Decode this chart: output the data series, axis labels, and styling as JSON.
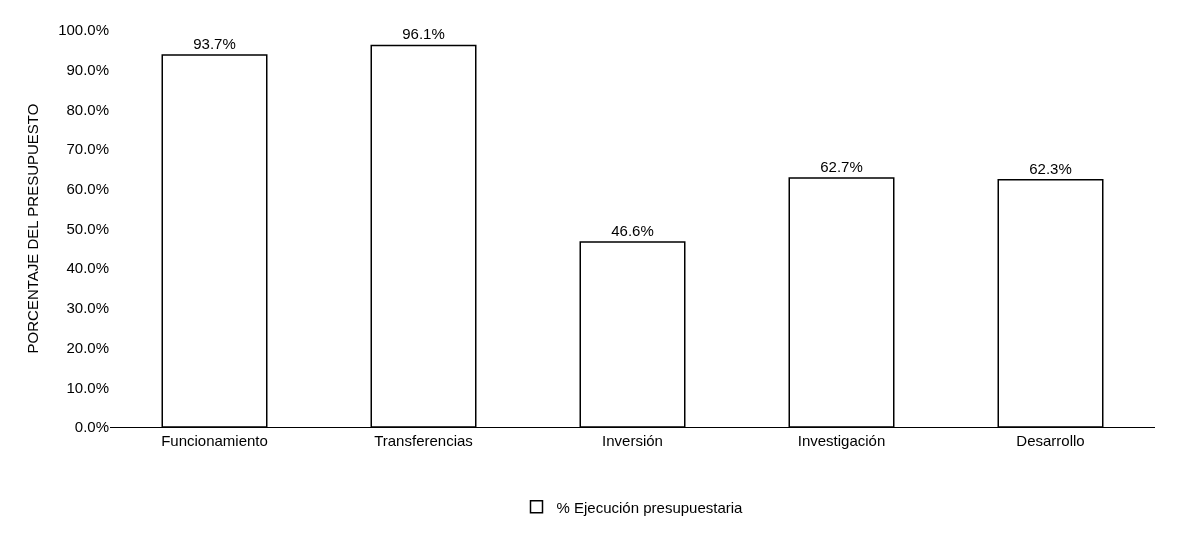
{
  "chart_data": {
    "type": "bar",
    "ylabel": "PORCENTAJE DEL PRESUPUESTO",
    "categories": [
      "Funcionamiento",
      "Transferencias",
      "Inversión",
      "Investigación",
      "Desarrollo"
    ],
    "series": [
      {
        "name": "% Ejecución presupuestaria",
        "color": "#ffffff",
        "values": [
          93.7,
          96.1,
          46.6,
          62.7,
          62.3
        ],
        "value_labels": [
          "93.7%",
          "96.1%",
          "46.6%",
          "62.7%",
          "62.3%"
        ]
      }
    ],
    "ylim": [
      0,
      100
    ],
    "yticks": [
      {
        "value": 0,
        "label": "0.0%"
      },
      {
        "value": 10,
        "label": "10.0%"
      },
      {
        "value": 20,
        "label": "20.0%"
      },
      {
        "value": 30,
        "label": "30.0%"
      },
      {
        "value": 40,
        "label": "40.0%"
      },
      {
        "value": 50,
        "label": "50.0%"
      },
      {
        "value": 60,
        "label": "60.0%"
      },
      {
        "value": 70,
        "label": "70.0%"
      },
      {
        "value": 80,
        "label": "80.0%"
      },
      {
        "value": 90,
        "label": "90.0%"
      },
      {
        "value": 100,
        "label": "100.0%"
      }
    ],
    "legend": "bottom"
  }
}
